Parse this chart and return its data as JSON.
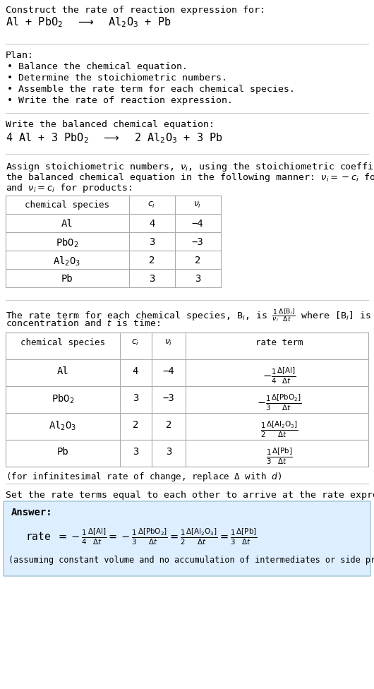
{
  "bg_color": "#ffffff",
  "text_color": "#000000",
  "font_family": "DejaVu Sans Mono",
  "title_line1": "Construct the rate of reaction expression for:",
  "plan_header": "Plan:",
  "plan_items": [
    "• Balance the chemical equation.",
    "• Determine the stoichiometric numbers.",
    "• Assemble the rate term for each chemical species.",
    "• Write the rate of reaction expression."
  ],
  "balanced_header": "Write the balanced chemical equation:",
  "stoich_intro_lines": [
    "Assign stoichiometric numbers, $\\nu_i$, using the stoichiometric coefficients, $c_i$, from",
    "the balanced chemical equation in the following manner: $\\nu_i = -c_i$ for reactants",
    "and $\\nu_i = c_i$ for products:"
  ],
  "table1_headers": [
    "chemical species",
    "$c_i$",
    "$\\nu_i$"
  ],
  "table1_data": [
    [
      "Al",
      "4",
      "−4"
    ],
    [
      "PbO$_2$",
      "3",
      "−3"
    ],
    [
      "Al$_2$O$_3$",
      "2",
      "2"
    ],
    [
      "Pb",
      "3",
      "3"
    ]
  ],
  "rate_intro_lines": [
    "The rate term for each chemical species, B$_i$, is $\\frac{1}{\\nu_i}\\frac{\\Delta[\\mathrm{B}_i]}{\\Delta t}$ where [B$_i$] is the amount",
    "concentration and $t$ is time:"
  ],
  "table2_headers": [
    "chemical species",
    "$c_i$",
    "$\\nu_i$",
    "rate term"
  ],
  "table2_data": [
    [
      "Al",
      "4",
      "−4"
    ],
    [
      "PbO$_2$",
      "3",
      "−3"
    ],
    [
      "Al$_2$O$_3$",
      "2",
      "2"
    ],
    [
      "Pb",
      "3",
      "3"
    ]
  ],
  "rate_terms": [
    "$-\\frac{1}{4}\\frac{\\Delta[\\mathrm{Al}]}{\\Delta t}$",
    "$-\\frac{1}{3}\\frac{\\Delta[\\mathrm{PbO_2}]}{\\Delta t}$",
    "$\\frac{1}{2}\\frac{\\Delta[\\mathrm{Al_2O_3}]}{\\Delta t}$",
    "$\\frac{1}{3}\\frac{\\Delta[\\mathrm{Pb}]}{\\Delta t}$"
  ],
  "infinitesimal_note": "(for infinitesimal rate of change, replace Δ with $d$)",
  "set_rate_header": "Set the rate terms equal to each other to arrive at the rate expression:",
  "answer_box_color": "#ddeeff",
  "answer_border_color": "#aaccdd",
  "answer_label": "Answer:",
  "assumption_note": "(assuming constant volume and no accumulation of intermediates or side products)",
  "line_color": "#cccccc",
  "table_line_color": "#aaaaaa"
}
